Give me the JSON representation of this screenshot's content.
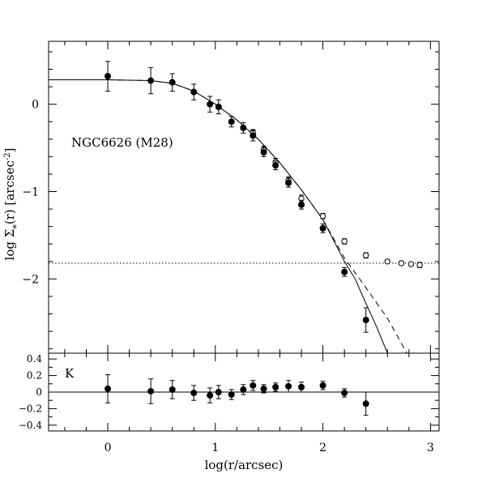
{
  "chart_data": [
    {
      "type": "scatter",
      "annotation": "NGC6626 (M28)",
      "xlabel": "log(r/arcsec)",
      "ylabel_prefix": "log Σ",
      "ylabel_sub": "*",
      "ylabel_suffix": "(r) [arcsec",
      "ylabel_sup": "-2",
      "ylabel_close": "]",
      "xlim": [
        -0.55,
        3.08
      ],
      "ylim": [
        -2.85,
        0.72
      ],
      "x_ticks": [
        0,
        1,
        2,
        3
      ],
      "x_tick_labels": [
        "0",
        "1",
        "2",
        "3"
      ],
      "y_ticks": [
        0,
        -1,
        -2
      ],
      "y_tick_labels": [
        "0",
        "−1",
        "−2"
      ],
      "background_level": -1.82,
      "filled_points": [
        {
          "x": 0.0,
          "y": 0.32,
          "err": 0.17
        },
        {
          "x": 0.4,
          "y": 0.27,
          "err": 0.15
        },
        {
          "x": 0.6,
          "y": 0.25,
          "err": 0.1
        },
        {
          "x": 0.8,
          "y": 0.14,
          "err": 0.09
        },
        {
          "x": 0.95,
          "y": 0.0,
          "err": 0.09
        },
        {
          "x": 1.03,
          "y": -0.03,
          "err": 0.08
        },
        {
          "x": 1.15,
          "y": -0.2,
          "err": 0.06
        },
        {
          "x": 1.26,
          "y": -0.27,
          "err": 0.06
        },
        {
          "x": 1.35,
          "y": -0.36,
          "err": 0.06
        },
        {
          "x": 1.45,
          "y": -0.55,
          "err": 0.05
        },
        {
          "x": 1.56,
          "y": -0.7,
          "err": 0.05
        },
        {
          "x": 1.68,
          "y": -0.9,
          "err": 0.05
        },
        {
          "x": 1.8,
          "y": -1.15,
          "err": 0.05
        },
        {
          "x": 2.0,
          "y": -1.42,
          "err": 0.05
        },
        {
          "x": 2.2,
          "y": -1.92,
          "err": 0.05
        },
        {
          "x": 2.4,
          "y": -2.47,
          "err": 0.14
        }
      ],
      "open_points": [
        {
          "x": 1.35,
          "y": -0.33,
          "err": 0.04
        },
        {
          "x": 1.45,
          "y": -0.52,
          "err": 0.04
        },
        {
          "x": 1.56,
          "y": -0.66,
          "err": 0.04
        },
        {
          "x": 1.68,
          "y": -0.87,
          "err": 0.04
        },
        {
          "x": 1.8,
          "y": -1.08,
          "err": 0.04
        },
        {
          "x": 2.0,
          "y": -1.28,
          "err": 0.03
        },
        {
          "x": 2.2,
          "y": -1.57,
          "err": 0.03
        },
        {
          "x": 2.4,
          "y": -1.73,
          "err": 0.03
        },
        {
          "x": 2.6,
          "y": -1.8,
          "err": 0.02
        },
        {
          "x": 2.73,
          "y": -1.82,
          "err": 0.02
        },
        {
          "x": 2.82,
          "y": -1.83,
          "err": 0.02
        },
        {
          "x": 2.9,
          "y": -1.84,
          "err": 0.03
        }
      ],
      "model_solid": [
        [
          -0.55,
          0.28
        ],
        [
          0.0,
          0.28
        ],
        [
          0.4,
          0.27
        ],
        [
          0.6,
          0.24
        ],
        [
          0.8,
          0.15
        ],
        [
          1.0,
          0.0
        ],
        [
          1.2,
          -0.18
        ],
        [
          1.4,
          -0.4
        ],
        [
          1.6,
          -0.67
        ],
        [
          1.8,
          -0.98
        ],
        [
          2.0,
          -1.32
        ],
        [
          2.2,
          -1.8
        ],
        [
          2.3,
          -2.0
        ],
        [
          2.4,
          -2.28
        ],
        [
          2.5,
          -2.55
        ],
        [
          2.6,
          -2.85
        ]
      ],
      "model_dashed": [
        [
          0.0,
          0.28
        ],
        [
          0.4,
          0.27
        ],
        [
          0.6,
          0.24
        ],
        [
          0.8,
          0.15
        ],
        [
          1.0,
          0.0
        ],
        [
          1.2,
          -0.18
        ],
        [
          1.4,
          -0.4
        ],
        [
          1.6,
          -0.67
        ],
        [
          1.8,
          -0.98
        ],
        [
          2.0,
          -1.32
        ],
        [
          2.2,
          -1.76
        ],
        [
          2.4,
          -2.1
        ],
        [
          2.6,
          -2.45
        ],
        [
          2.78,
          -2.85
        ]
      ]
    },
    {
      "type": "scatter",
      "annotation": "K",
      "xlim": [
        -0.55,
        3.08
      ],
      "ylim": [
        -0.47,
        0.47
      ],
      "y_ticks": [
        0.4,
        0.2,
        0,
        -0.2,
        -0.4
      ],
      "y_tick_labels": [
        "0.4",
        "0.2",
        "0",
        "−0.2",
        "−0.4"
      ],
      "zero_line": 0,
      "points": [
        {
          "x": 0.0,
          "y": 0.04,
          "err": 0.17
        },
        {
          "x": 0.4,
          "y": 0.01,
          "err": 0.15
        },
        {
          "x": 0.6,
          "y": 0.03,
          "err": 0.11
        },
        {
          "x": 0.8,
          "y": -0.01,
          "err": 0.09
        },
        {
          "x": 0.95,
          "y": -0.04,
          "err": 0.09
        },
        {
          "x": 1.03,
          "y": 0.0,
          "err": 0.08
        },
        {
          "x": 1.15,
          "y": -0.03,
          "err": 0.06
        },
        {
          "x": 1.26,
          "y": 0.03,
          "err": 0.06
        },
        {
          "x": 1.35,
          "y": 0.08,
          "err": 0.06
        },
        {
          "x": 1.45,
          "y": 0.04,
          "err": 0.05
        },
        {
          "x": 1.56,
          "y": 0.06,
          "err": 0.05
        },
        {
          "x": 1.68,
          "y": 0.07,
          "err": 0.07
        },
        {
          "x": 1.8,
          "y": 0.06,
          "err": 0.06
        },
        {
          "x": 2.0,
          "y": 0.08,
          "err": 0.05
        },
        {
          "x": 2.2,
          "y": -0.01,
          "err": 0.05
        },
        {
          "x": 2.4,
          "y": -0.14,
          "err": 0.14
        }
      ]
    }
  ]
}
